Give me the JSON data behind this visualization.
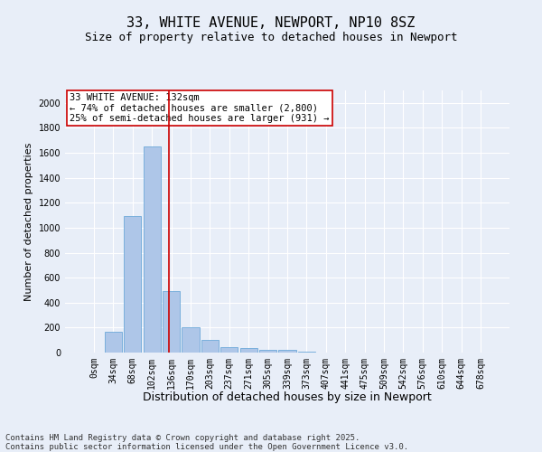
{
  "title_line1": "33, WHITE AVENUE, NEWPORT, NP10 8SZ",
  "title_line2": "Size of property relative to detached houses in Newport",
  "xlabel": "Distribution of detached houses by size in Newport",
  "ylabel": "Number of detached properties",
  "bar_labels": [
    "0sqm",
    "34sqm",
    "68sqm",
    "102sqm",
    "136sqm",
    "170sqm",
    "203sqm",
    "237sqm",
    "271sqm",
    "305sqm",
    "339sqm",
    "373sqm",
    "407sqm",
    "441sqm",
    "475sqm",
    "509sqm",
    "542sqm",
    "576sqm",
    "610sqm",
    "644sqm",
    "678sqm"
  ],
  "bar_values": [
    0,
    170,
    1090,
    1650,
    490,
    200,
    100,
    45,
    35,
    20,
    20,
    10,
    0,
    0,
    0,
    0,
    0,
    0,
    0,
    0,
    0
  ],
  "bar_color": "#aec6e8",
  "bar_edge_color": "#5a9fd4",
  "bar_edge_width": 0.5,
  "ylim": [
    0,
    2100
  ],
  "yticks": [
    0,
    200,
    400,
    600,
    800,
    1000,
    1200,
    1400,
    1600,
    1800,
    2000
  ],
  "vline_color": "#cc0000",
  "annotation_text": "33 WHITE AVENUE: 132sqm\n← 74% of detached houses are smaller (2,800)\n25% of semi-detached houses are larger (931) →",
  "annotation_box_color": "#ffffff",
  "annotation_box_edge_color": "#cc0000",
  "background_color": "#e8eef8",
  "grid_color": "#ffffff",
  "footer_text": "Contains HM Land Registry data © Crown copyright and database right 2025.\nContains public sector information licensed under the Open Government Licence v3.0.",
  "title_fontsize": 11,
  "subtitle_fontsize": 9,
  "xlabel_fontsize": 9,
  "ylabel_fontsize": 8,
  "tick_fontsize": 7,
  "annotation_fontsize": 7.5,
  "footer_fontsize": 6.5
}
